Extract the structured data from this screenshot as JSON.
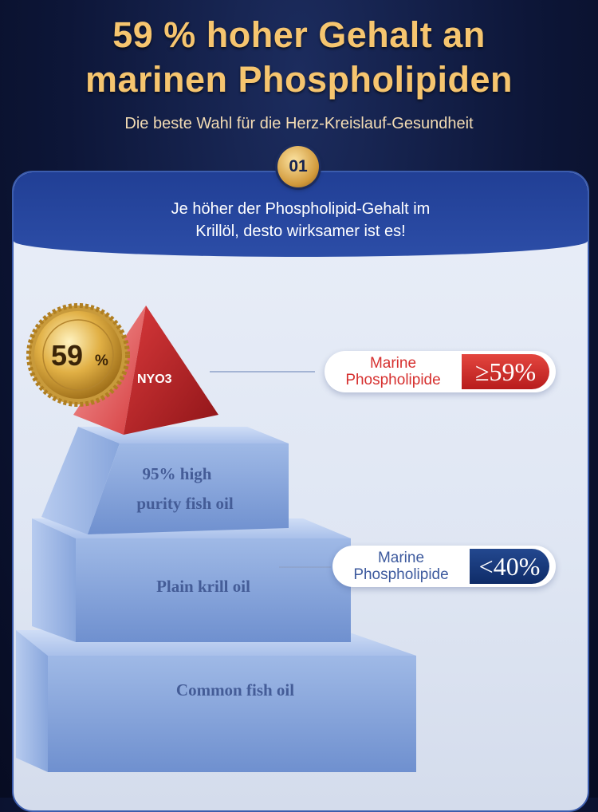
{
  "header": {
    "title_line1": "59 % hoher Gehalt an",
    "title_line2": "marinen Phospholipiden",
    "subtitle": "Die beste Wahl für die Herz-Kreislauf-Gesundheit",
    "step_number": "01"
  },
  "panel": {
    "intro_line1": "Je höher der Phospholipid-Gehalt im",
    "intro_line2": "Krillöl, desto wirksamer ist es!"
  },
  "seal": {
    "value": "59",
    "unit": "%"
  },
  "pyramid": {
    "top_label": "NYO3",
    "tier2_line1": "95% high",
    "tier2_line2": "purity fish oil",
    "tier3": "Plain krill oil",
    "tier4": "Common fish oil"
  },
  "callouts": {
    "top": {
      "line1": "Marine",
      "line2": "Phospholipide",
      "value": "≥59%"
    },
    "middle": {
      "line1": "Marine",
      "line2": "Phospholipide",
      "value": "<40%"
    }
  },
  "colors": {
    "title_gold": "#f6c56f",
    "accent_red": "#d6302f",
    "accent_navy": "#1a3a7c"
  }
}
